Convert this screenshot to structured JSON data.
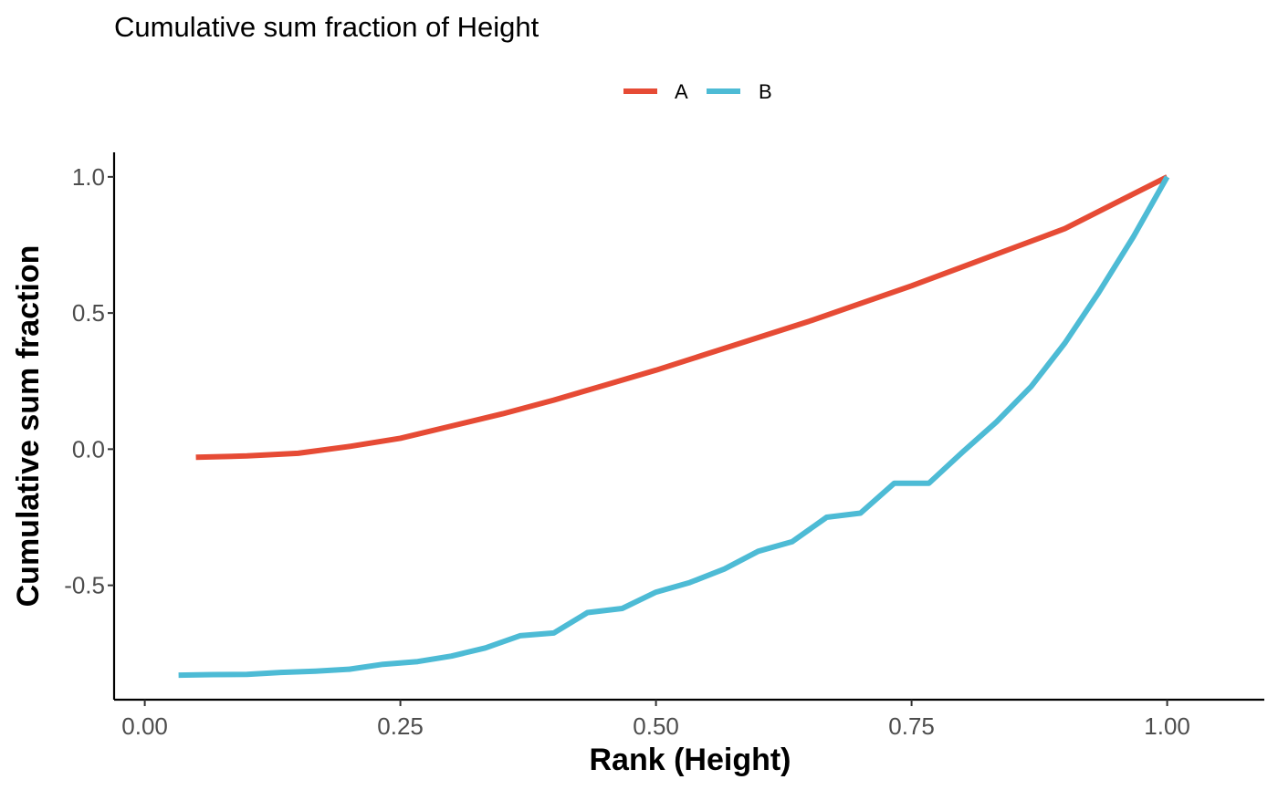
{
  "chart_data": {
    "type": "line",
    "title": "Cumulative sum fraction of Height",
    "xlabel": "Rank (Height)",
    "ylabel": "Cumulative sum fraction",
    "xlim": [
      -0.03,
      1.095
    ],
    "ylim": [
      -0.92,
      1.09
    ],
    "xticks": [
      0,
      0.25,
      0.5,
      0.75,
      1.0
    ],
    "xtick_labels": [
      "0.00",
      "0.25",
      "0.50",
      "0.75",
      "1.00"
    ],
    "yticks": [
      1.0,
      0.5,
      0.0,
      -0.5
    ],
    "ytick_labels": [
      "1.0",
      "0.5",
      "0.0",
      "-0.5"
    ],
    "grid": false,
    "legend_position": "top",
    "series": [
      {
        "name": "A",
        "color": "#E64B35",
        "x": [
          0.05,
          0.1,
          0.15,
          0.2,
          0.25,
          0.3,
          0.35,
          0.4,
          0.45,
          0.5,
          0.55,
          0.6,
          0.65,
          0.7,
          0.75,
          0.8,
          0.85,
          0.9,
          0.95,
          1.0
        ],
        "y": [
          -0.03,
          -0.025,
          -0.015,
          0.01,
          0.04,
          0.085,
          0.13,
          0.18,
          0.235,
          0.29,
          0.35,
          0.41,
          0.47,
          0.535,
          0.6,
          0.67,
          0.74,
          0.81,
          0.905,
          1.0
        ]
      },
      {
        "name": "B",
        "color": "#4DBBD5",
        "x": [
          0.033,
          0.067,
          0.1,
          0.133,
          0.167,
          0.2,
          0.233,
          0.267,
          0.3,
          0.333,
          0.367,
          0.4,
          0.433,
          0.467,
          0.5,
          0.533,
          0.567,
          0.6,
          0.633,
          0.667,
          0.7,
          0.733,
          0.767,
          0.8,
          0.833,
          0.867,
          0.9,
          0.933,
          0.967,
          1.0
        ],
        "y": [
          -0.83,
          -0.828,
          -0.827,
          -0.82,
          -0.815,
          -0.808,
          -0.79,
          -0.78,
          -0.76,
          -0.73,
          -0.685,
          -0.675,
          -0.6,
          -0.585,
          -0.525,
          -0.49,
          -0.44,
          -0.375,
          -0.34,
          -0.25,
          -0.235,
          -0.125,
          -0.125,
          -0.01,
          0.1,
          0.23,
          0.39,
          0.575,
          0.78,
          1.0
        ]
      }
    ]
  }
}
